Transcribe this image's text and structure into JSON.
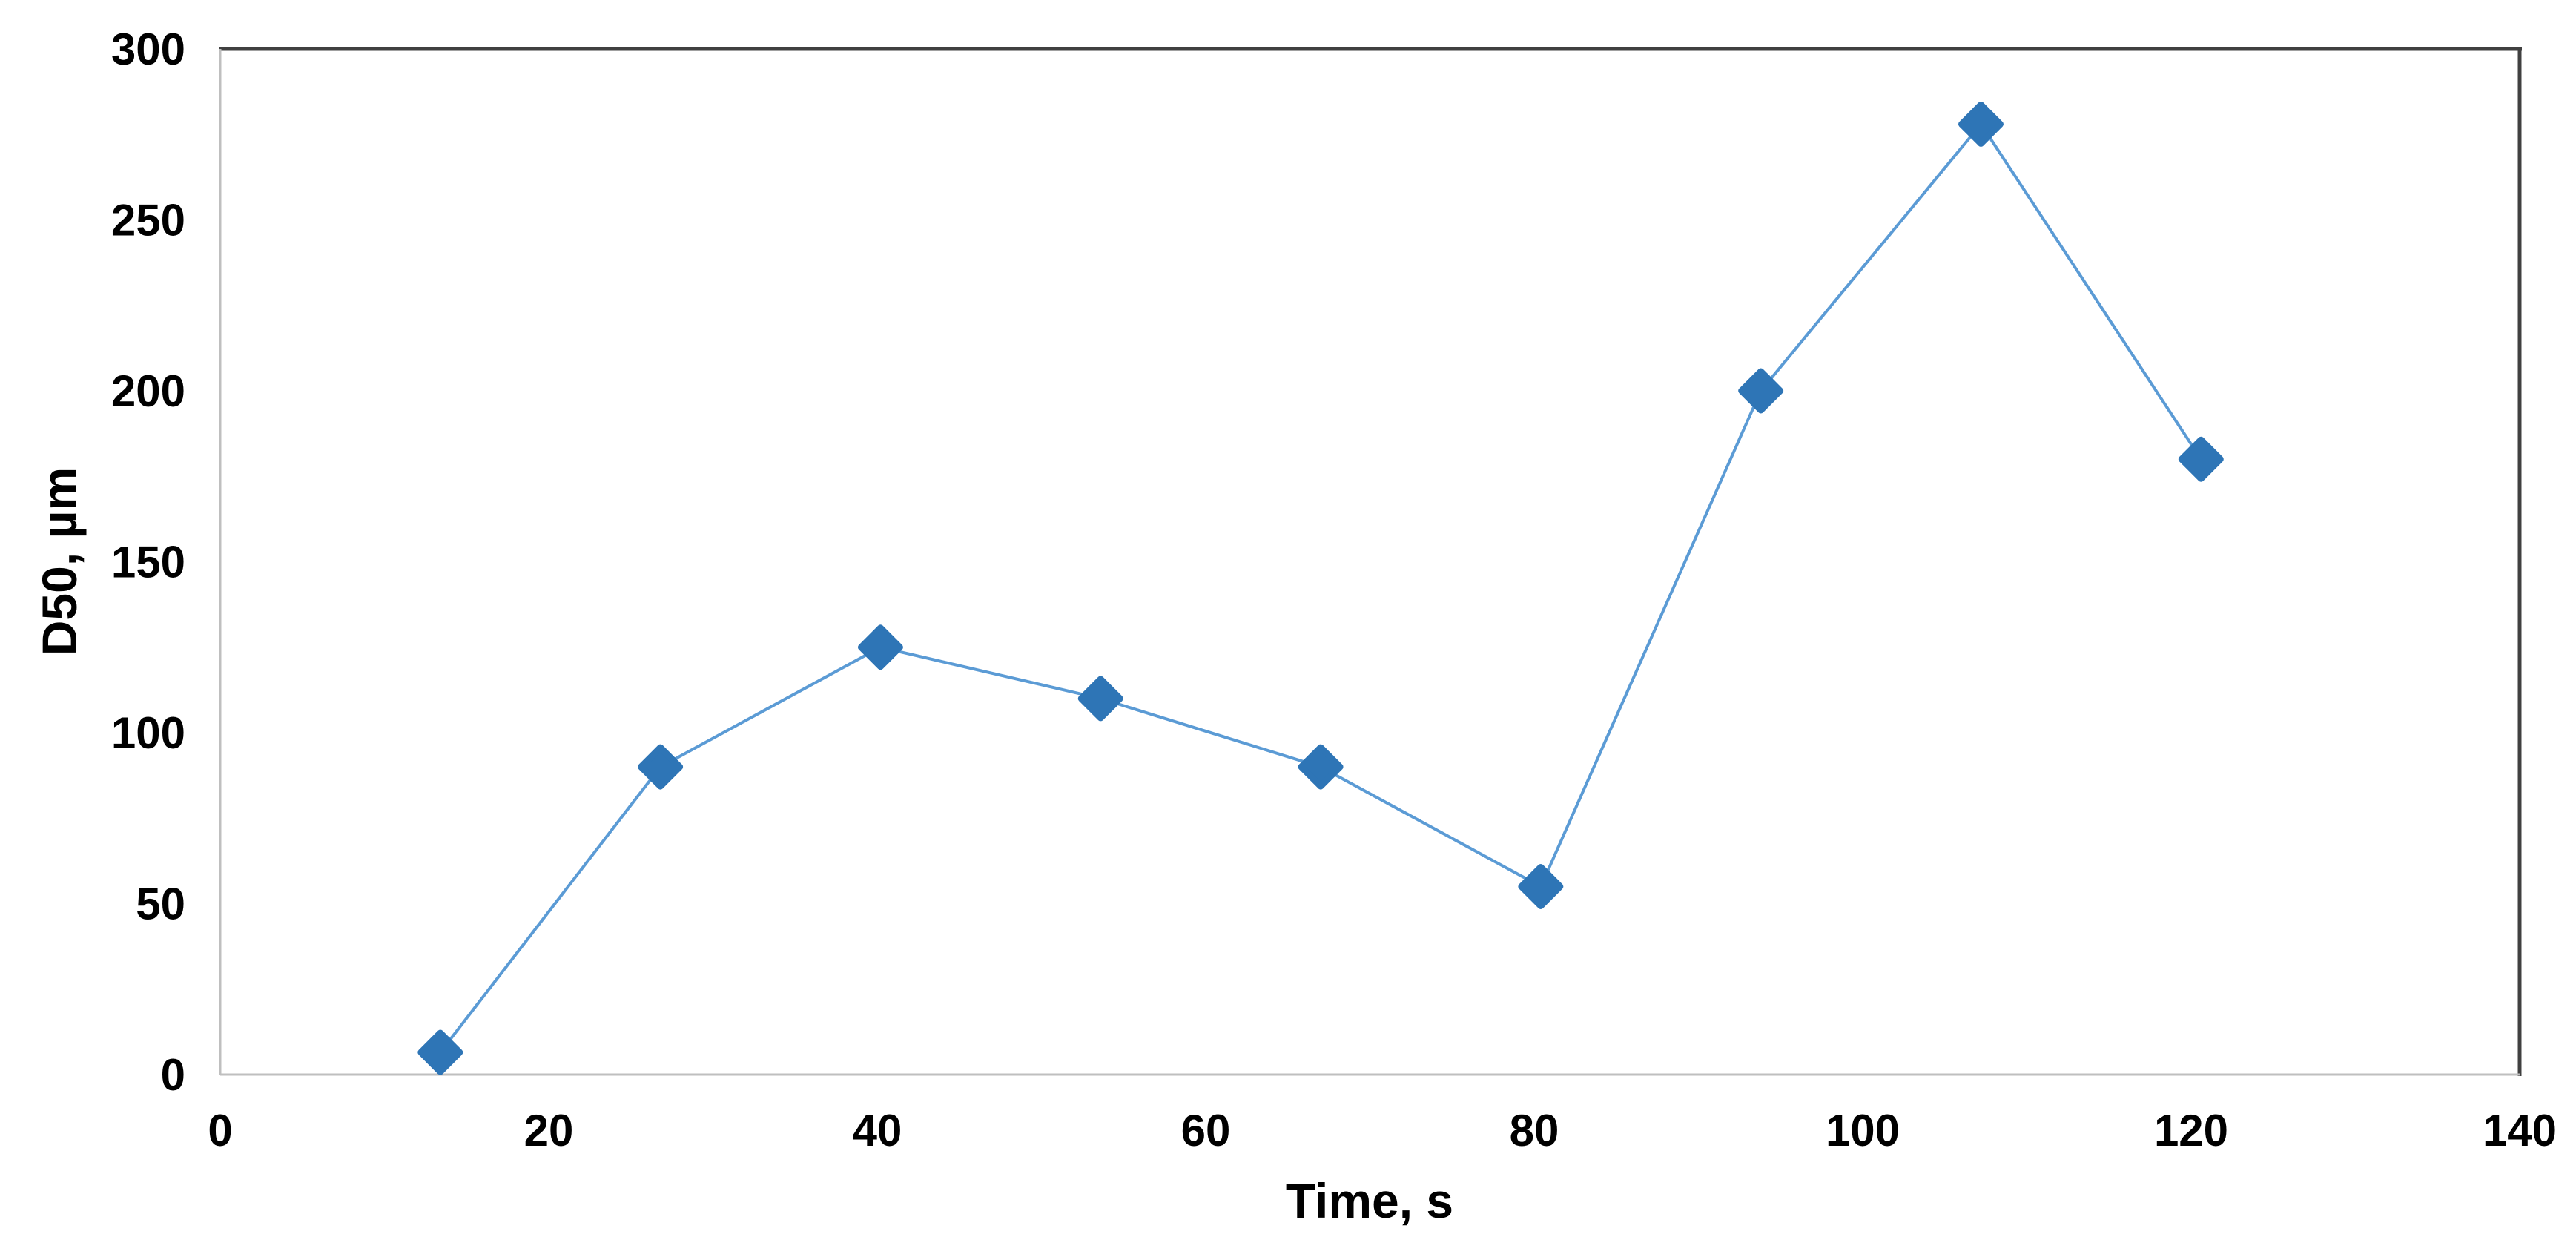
{
  "chart_data": {
    "type": "line",
    "title": "",
    "xlabel": "Time, s",
    "ylabel": "D50, µm",
    "xlim": [
      0,
      140
    ],
    "ylim": [
      0,
      300
    ],
    "xticks": [
      0,
      20,
      40,
      60,
      80,
      100,
      120,
      140
    ],
    "yticks": [
      0,
      50,
      100,
      150,
      200,
      250,
      300
    ],
    "grid": false,
    "legend": "none",
    "marker": "diamond",
    "marker_color": "#2E75B6",
    "line_color": "#5B9BD5",
    "axis_line_color": "#BFBFBF",
    "frame_color": "#404040",
    "text_color": "#000000",
    "series": [
      {
        "name": "D50",
        "points": [
          {
            "x": 13.4,
            "y": 6.5
          },
          {
            "x": 26.8,
            "y": 90
          },
          {
            "x": 40.2,
            "y": 125
          },
          {
            "x": 53.6,
            "y": 110
          },
          {
            "x": 67.0,
            "y": 90
          },
          {
            "x": 80.4,
            "y": 55
          },
          {
            "x": 93.8,
            "y": 200
          },
          {
            "x": 107.2,
            "y": 278
          },
          {
            "x": 120.6,
            "y": 180
          }
        ]
      }
    ]
  }
}
